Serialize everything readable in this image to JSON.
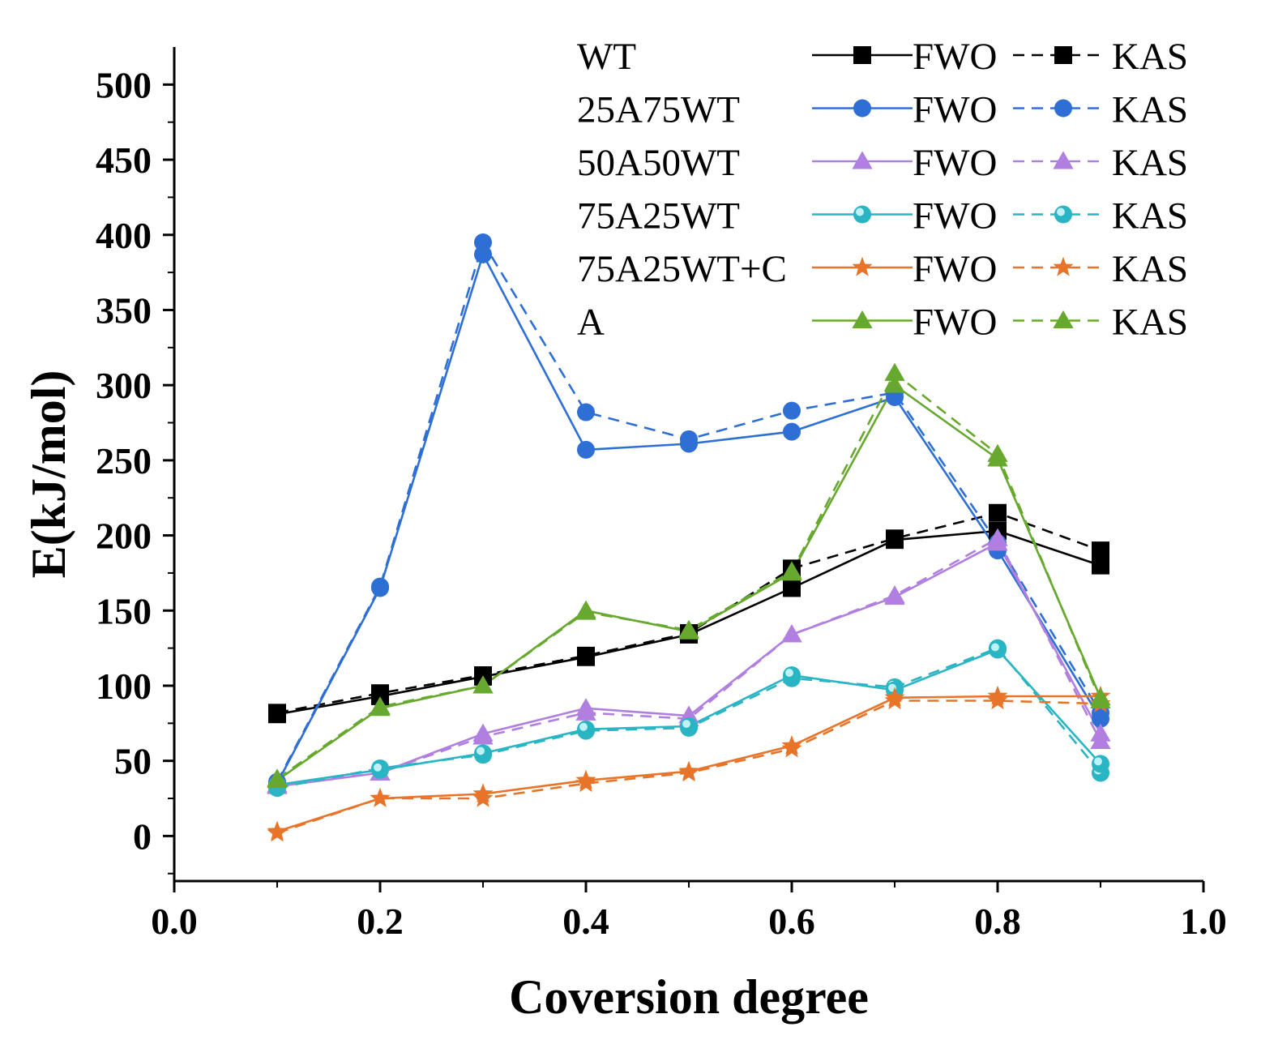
{
  "chart_data": {
    "type": "line",
    "xlabel": "Coversion degree",
    "ylabel": "E(kJ/mol)",
    "xlim": [
      0.0,
      1.0
    ],
    "ylim": [
      -30,
      525
    ],
    "xticks": [
      0.0,
      0.2,
      0.4,
      0.6,
      0.8,
      1.0
    ],
    "xtick_labels": [
      "0.0",
      "0.2",
      "0.4",
      "0.6",
      "0.8",
      "1.0"
    ],
    "yticks": [
      0,
      50,
      100,
      150,
      200,
      250,
      300,
      350,
      400,
      450,
      500
    ],
    "ytick_labels": [
      "0",
      "50",
      "100",
      "150",
      "200",
      "250",
      "300",
      "350",
      "400",
      "450",
      "500"
    ],
    "x": [
      0.1,
      0.2,
      0.3,
      0.4,
      0.5,
      0.6,
      0.7,
      0.8,
      0.9
    ],
    "method_labels": {
      "fwo": "FWO",
      "kas": "KAS"
    },
    "legend_position": "top-right",
    "grid": false,
    "samples": [
      {
        "name": "WT",
        "color": "#000000",
        "marker": "square",
        "fwo": [
          81,
          93,
          106,
          119,
          134,
          165,
          197,
          203,
          180
        ],
        "kas": [
          82,
          95,
          107,
          120,
          135,
          178,
          198,
          215,
          190
        ]
      },
      {
        "name": "25A75WT",
        "color": "#2e6fd6",
        "marker": "circle",
        "fwo": [
          35,
          165,
          387,
          257,
          261,
          269,
          292,
          190,
          78
        ],
        "kas": [
          36,
          166,
          395,
          282,
          264,
          283,
          295,
          195,
          82
        ]
      },
      {
        "name": "50A50WT",
        "color": "#b07fe0",
        "marker": "triangle",
        "fwo": [
          33,
          42,
          68,
          85,
          80,
          134,
          159,
          195,
          68
        ],
        "kas": [
          34,
          42,
          66,
          82,
          78,
          134,
          160,
          198,
          63
        ]
      },
      {
        "name": "75A25WT",
        "color": "#2ab5c4",
        "marker": "circle-hollow",
        "fwo": [
          34,
          44,
          55,
          71,
          73,
          107,
          97,
          124,
          48
        ],
        "kas": [
          32,
          45,
          54,
          70,
          72,
          105,
          99,
          125,
          42
        ]
      },
      {
        "name": "75A25WT+C",
        "color": "#e8742a",
        "marker": "star",
        "fwo": [
          3,
          25,
          28,
          37,
          43,
          60,
          92,
          93,
          93
        ],
        "kas": [
          2,
          25,
          25,
          35,
          42,
          58,
          90,
          90,
          88
        ]
      },
      {
        "name": "A",
        "color": "#67a92e",
        "marker": "triangle",
        "fwo": [
          37,
          85,
          100,
          150,
          136,
          175,
          300,
          251,
          92
        ],
        "kas": [
          38,
          86,
          100,
          149,
          137,
          176,
          308,
          254,
          90
        ]
      }
    ]
  }
}
